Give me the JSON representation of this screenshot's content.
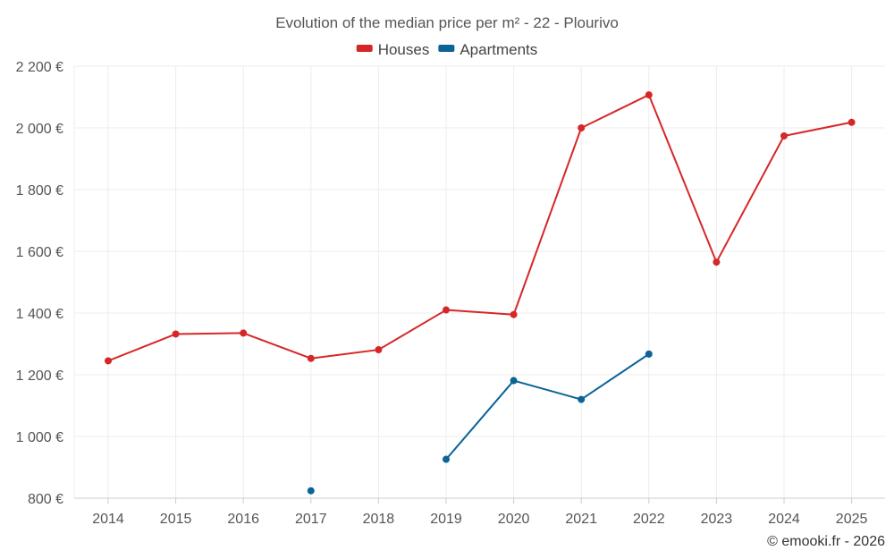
{
  "chart_data": {
    "type": "line",
    "title": "Evolution of the median price per m² - 22 - Plourivo",
    "categories": [
      "2014",
      "2015",
      "2016",
      "2017",
      "2018",
      "2019",
      "2020",
      "2021",
      "2022",
      "2023",
      "2024",
      "2025"
    ],
    "y_ticks": [
      "800 €",
      "1 000 €",
      "1 200 €",
      "1 400 €",
      "1 600 €",
      "1 800 €",
      "2 000 €",
      "2 200 €"
    ],
    "ylim": [
      800,
      2200
    ],
    "grid": true,
    "legend_position": "top-center",
    "series": [
      {
        "name": "Houses",
        "color": "#d62728",
        "values": [
          1245,
          1332,
          1335,
          1253,
          1281,
          1410,
          1395,
          2000,
          2107,
          1565,
          1974,
          2018
        ]
      },
      {
        "name": "Apartments",
        "color": "#0b6396",
        "values": [
          null,
          null,
          null,
          824,
          null,
          926,
          1181,
          1120,
          1267,
          null,
          null,
          null
        ]
      }
    ]
  },
  "credit": "© emooki.fr - 2026"
}
